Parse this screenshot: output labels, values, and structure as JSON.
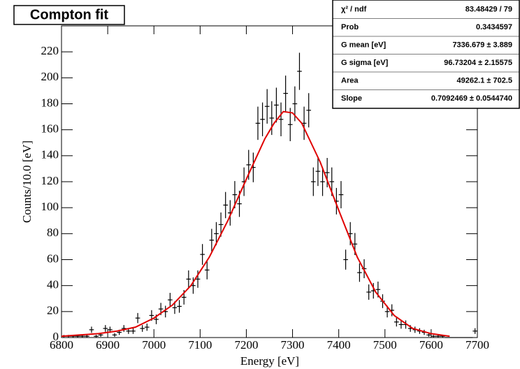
{
  "chart_data": {
    "type": "errorbar",
    "title": "Compton fit",
    "x_label": "Energy [eV]",
    "y_label": "Counts/10.0 [eV]",
    "xlim": [
      6800,
      7700
    ],
    "ylim": [
      0,
      240
    ],
    "xticks": [
      6800,
      6900,
      7000,
      7100,
      7200,
      7300,
      7400,
      7500,
      7600,
      7700
    ],
    "yticks": [
      0,
      20,
      40,
      60,
      80,
      100,
      120,
      140,
      160,
      180,
      200,
      220
    ],
    "series": [
      {
        "type": "errorbar",
        "color": "#000000",
        "x": [
          6805,
          6815,
          6825,
          6835,
          6845,
          6855,
          6865,
          6875,
          6885,
          6895,
          6905,
          6915,
          6925,
          6935,
          6945,
          6955,
          6965,
          6975,
          6985,
          6995,
          7005,
          7015,
          7025,
          7035,
          7045,
          7055,
          7065,
          7075,
          7085,
          7095,
          7105,
          7115,
          7125,
          7135,
          7145,
          7155,
          7165,
          7175,
          7185,
          7195,
          7205,
          7215,
          7225,
          7235,
          7245,
          7255,
          7265,
          7275,
          7285,
          7295,
          7305,
          7315,
          7325,
          7335,
          7345,
          7355,
          7365,
          7375,
          7385,
          7395,
          7405,
          7415,
          7425,
          7435,
          7445,
          7455,
          7465,
          7475,
          7485,
          7495,
          7505,
          7515,
          7525,
          7535,
          7545,
          7555,
          7565,
          7575,
          7585,
          7595,
          7605,
          7615,
          7625,
          7635,
          7645,
          7655,
          7665,
          7675,
          7685,
          7695
        ],
        "values": [
          1,
          1,
          1,
          1,
          1,
          1,
          6,
          1,
          2,
          7,
          6,
          2,
          4,
          7,
          5,
          5,
          15,
          7,
          8,
          17,
          14,
          22,
          20,
          29,
          23,
          24,
          31,
          45,
          40,
          45,
          64,
          52,
          75,
          80,
          87,
          102,
          96,
          110,
          103,
          120,
          133,
          131,
          165,
          168,
          178,
          169,
          179,
          168,
          188,
          164,
          180,
          205,
          165,
          175,
          120,
          128,
          120,
          127,
          120,
          105,
          110,
          60,
          80,
          72,
          50,
          53,
          35,
          36,
          37,
          28,
          20,
          21,
          12,
          10,
          10,
          7,
          6,
          5,
          4,
          2,
          1,
          1,
          1,
          0,
          0,
          0,
          0,
          0,
          0,
          5
        ],
        "errors": [
          1,
          1,
          1,
          1,
          1,
          1,
          2.4,
          1,
          1.4,
          2.6,
          2.4,
          1.4,
          2,
          2.6,
          2.2,
          2.2,
          3.9,
          2.6,
          2.8,
          4.1,
          3.7,
          4.7,
          4.5,
          5.4,
          4.8,
          4.9,
          5.6,
          6.7,
          6.3,
          6.7,
          8,
          7.2,
          8.7,
          8.9,
          9.3,
          10.1,
          9.8,
          10.5,
          10.1,
          11,
          11.5,
          11.4,
          12.8,
          13,
          13.3,
          13,
          13.4,
          13,
          13.7,
          12.8,
          13.4,
          14.3,
          12.8,
          13.2,
          11,
          11.3,
          11,
          11.3,
          11,
          10.2,
          10.5,
          7.7,
          8.9,
          8.5,
          7.1,
          7.3,
          5.9,
          6,
          6.1,
          5.3,
          4.5,
          4.6,
          3.5,
          3.2,
          3.2,
          2.6,
          2.4,
          2.2,
          2,
          1.4,
          1,
          1,
          1,
          0,
          0,
          0,
          0,
          0,
          0,
          2.2
        ]
      },
      {
        "type": "line",
        "color": "#e00000",
        "x": [
          6800,
          6840,
          6880,
          6920,
          6960,
          7000,
          7040,
          7080,
          7120,
          7160,
          7200,
          7240,
          7260,
          7280,
          7300,
          7320,
          7360,
          7400,
          7440,
          7480,
          7520,
          7560,
          7600,
          7640
        ],
        "values": [
          1,
          2,
          3,
          5,
          8,
          15,
          25,
          40,
          62,
          90,
          122,
          153,
          165,
          174,
          173,
          165,
          135,
          98,
          62,
          35,
          17,
          7,
          3,
          1
        ]
      }
    ],
    "stats": {
      "rows": [
        [
          "χ² / ndf",
          "83.48429 / 79"
        ],
        [
          "Prob",
          "0.3434597"
        ],
        [
          "G mean [eV]",
          "7336.679 ± 3.889"
        ],
        [
          "G sigma [eV]",
          "96.73204 ± 2.15575"
        ],
        [
          "Area",
          "49262.1 ± 702.5"
        ],
        [
          "Slope",
          "0.7092469 ± 0.0544740"
        ]
      ]
    }
  }
}
